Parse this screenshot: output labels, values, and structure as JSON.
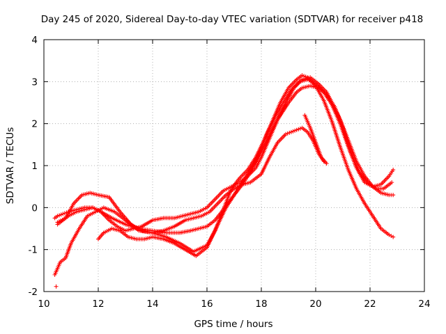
{
  "chart_data": {
    "type": "scatter",
    "title": "Day 245 of 2020, Sidereal Day-to-day VTEC variation (SDTVAR) for receiver p418",
    "xlabel": "GPS time / hours",
    "ylabel": "SDTVAR / TECUs",
    "xlim": [
      10,
      24
    ],
    "ylim": [
      -2,
      4
    ],
    "xticks": [
      "10",
      "12",
      "14",
      "16",
      "18",
      "20",
      "22",
      "24"
    ],
    "yticks": [
      "-2",
      "-1",
      "0",
      "1",
      "2",
      "3",
      "4"
    ],
    "grid": true,
    "marker": "+",
    "color": "#ff0000",
    "series": [
      {
        "name": "track-1",
        "x": [
          10.4,
          10.5,
          10.7,
          10.9,
          11.2,
          11.5,
          11.8,
          12.1,
          12.5,
          13.0,
          13.5,
          14.0,
          14.5,
          15.0,
          15.4,
          15.7,
          16.0,
          16.3,
          16.6,
          17.0,
          17.4,
          17.8,
          18.2,
          18.6,
          19.0,
          19.3,
          19.5,
          19.8,
          20.1,
          20.4,
          20.7,
          21.0,
          21.3,
          21.6,
          21.9,
          22.2,
          22.5,
          22.8
        ],
        "y": [
          -0.25,
          -0.2,
          -0.15,
          -0.1,
          -0.05,
          0.0,
          0.0,
          -0.1,
          -0.25,
          -0.4,
          -0.5,
          -0.55,
          -0.6,
          -0.6,
          -0.55,
          -0.5,
          -0.45,
          -0.3,
          -0.05,
          0.3,
          0.7,
          1.1,
          1.6,
          2.1,
          2.5,
          2.75,
          2.85,
          2.9,
          2.85,
          2.7,
          2.4,
          1.9,
          1.3,
          0.85,
          0.6,
          0.45,
          0.45,
          0.6
        ]
      },
      {
        "name": "track-2",
        "x": [
          10.5,
          10.8,
          11.1,
          11.4,
          11.7,
          12.0,
          12.4,
          12.8,
          13.2,
          13.6,
          14.0,
          14.4,
          14.8,
          15.2,
          15.5,
          15.8,
          16.1,
          16.4,
          16.7,
          17.0,
          17.3,
          17.6,
          18.0,
          18.3,
          18.6,
          18.9,
          19.1,
          19.3,
          19.5,
          19.7,
          19.9,
          20.1,
          20.3
        ],
        "y": [
          -0.35,
          -0.25,
          0.1,
          0.3,
          0.35,
          0.3,
          0.25,
          -0.1,
          -0.4,
          -0.55,
          -0.6,
          -0.55,
          -0.45,
          -0.3,
          -0.25,
          -0.2,
          -0.1,
          0.1,
          0.3,
          0.45,
          0.55,
          0.6,
          0.8,
          1.2,
          1.55,
          1.75,
          1.8,
          1.85,
          1.9,
          1.8,
          1.6,
          1.3,
          1.1
        ]
      },
      {
        "name": "track-3",
        "x": [
          10.4,
          10.6,
          10.8,
          11.0,
          11.3,
          11.6,
          11.9,
          12.2,
          12.6,
          13.0,
          13.5,
          14.0,
          14.5,
          15.0,
          15.5,
          16.0,
          16.3,
          16.6,
          16.9,
          17.2,
          17.5,
          17.8,
          18.1,
          18.4,
          18.7,
          19.0,
          19.3,
          19.5,
          19.7,
          20.0,
          20.3,
          20.6,
          20.9,
          21.2,
          21.5,
          21.8,
          22.1,
          22.4,
          22.7,
          22.85
        ],
        "y": [
          -1.6,
          -1.3,
          -1.2,
          -0.85,
          -0.5,
          -0.2,
          -0.1,
          0.0,
          -0.1,
          -0.3,
          -0.55,
          -0.6,
          -0.7,
          -0.85,
          -1.05,
          -0.9,
          -0.55,
          -0.05,
          0.45,
          0.7,
          0.9,
          1.2,
          1.6,
          2.05,
          2.5,
          2.85,
          3.05,
          3.15,
          3.1,
          2.9,
          2.55,
          2.05,
          1.45,
          0.9,
          0.45,
          0.1,
          -0.2,
          -0.5,
          -0.65,
          -0.7
        ]
      },
      {
        "name": "track-4",
        "x": [
          10.5,
          10.7,
          10.9,
          11.2,
          11.5,
          11.8,
          12.1,
          12.4,
          12.7,
          13.0,
          13.3,
          13.6,
          14.0,
          14.4,
          14.8,
          15.1,
          15.4,
          15.7,
          16.0,
          16.3,
          16.6,
          16.9,
          17.2,
          17.5,
          17.8,
          18.0,
          18.3,
          18.6,
          18.9,
          19.2,
          19.5,
          19.8,
          20.1,
          20.4,
          20.6,
          20.9,
          21.2,
          21.5,
          21.8,
          22.1,
          22.4,
          22.7,
          22.85
        ],
        "y": [
          -0.4,
          -0.3,
          -0.2,
          -0.1,
          -0.05,
          0.0,
          -0.1,
          -0.3,
          -0.45,
          -0.55,
          -0.5,
          -0.45,
          -0.3,
          -0.25,
          -0.25,
          -0.2,
          -0.15,
          -0.1,
          0.0,
          0.2,
          0.4,
          0.5,
          0.6,
          0.75,
          0.95,
          1.2,
          1.65,
          2.1,
          2.5,
          2.85,
          3.05,
          3.1,
          2.95,
          2.75,
          2.5,
          2.1,
          1.6,
          1.1,
          0.75,
          0.5,
          0.35,
          0.3,
          0.3
        ]
      },
      {
        "name": "track-5",
        "x": [
          12.0,
          12.2,
          12.5,
          12.8,
          13.1,
          13.4,
          13.7,
          14.0,
          14.4,
          14.8,
          15.2,
          15.6,
          16.0,
          16.4,
          16.7,
          17.0,
          17.3,
          17.6,
          17.9,
          18.2,
          18.5,
          18.8,
          19.1,
          19.4,
          19.7,
          20.0,
          20.3,
          20.6,
          20.9,
          21.2,
          21.5,
          21.8,
          22.1,
          22.4,
          22.7,
          22.85
        ],
        "y": [
          -0.75,
          -0.6,
          -0.5,
          -0.55,
          -0.7,
          -0.75,
          -0.75,
          -0.7,
          -0.75,
          -0.85,
          -1.0,
          -1.15,
          -0.95,
          -0.4,
          0.0,
          0.3,
          0.55,
          0.85,
          1.25,
          1.75,
          2.15,
          2.5,
          2.8,
          3.0,
          3.05,
          2.95,
          2.75,
          2.45,
          2.0,
          1.45,
          0.95,
          0.6,
          0.5,
          0.55,
          0.75,
          0.9
        ]
      },
      {
        "name": "track-6",
        "x": [
          19.6,
          19.8,
          20.0,
          20.2,
          20.4
        ],
        "y": [
          2.2,
          1.9,
          1.55,
          1.2,
          1.05
        ]
      },
      {
        "name": "outlier",
        "x": [
          10.45
        ],
        "y": [
          -1.88
        ]
      }
    ]
  }
}
